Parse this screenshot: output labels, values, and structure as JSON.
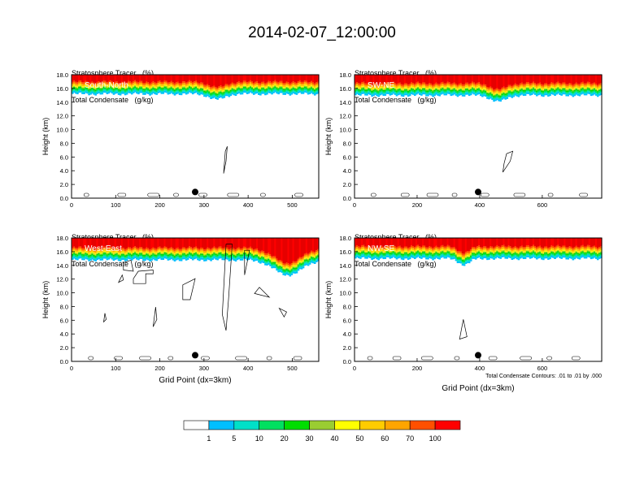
{
  "title": "2014-02-07_12:00:00",
  "panel_header": {
    "line1": "Stratosphere Tracer   (%)",
    "line2": "Total Condensate   (g/kg)"
  },
  "footnote": "Total Condensate Contours: .01 to .01 by .000",
  "colors": {
    "levels": [
      "#ffffff",
      "#1e90ff",
      "#00bfff",
      "#00e0c8",
      "#00e060",
      "#00dd00",
      "#9acd32",
      "#ffff00",
      "#ffcc00",
      "#ffa500",
      "#ff5000",
      "#ff0000"
    ]
  },
  "chart_data": [
    {
      "type": "heatmap",
      "panel": "South-North",
      "xlabel": "",
      "ylabel": "Height (km)",
      "xlim": [
        0,
        560
      ],
      "ylim": [
        0,
        18
      ],
      "xticks": [
        "0",
        "100",
        "200",
        "300",
        "400",
        "500"
      ],
      "yticks": [
        "0.0",
        "2.0",
        "4.0",
        "6.0",
        "8.0",
        "10.0",
        "12.0",
        "14.0",
        "16.0",
        "18.0"
      ],
      "marker_x": 280,
      "marker_y": 0.9,
      "tracer_base_km": 15.2,
      "dip": {
        "center": 330,
        "width": 25,
        "depth_km": 0.8
      }
    },
    {
      "type": "heatmap",
      "panel": "SW-NE",
      "xlabel": "",
      "ylabel": "Height (km)",
      "xlim": [
        0,
        790
      ],
      "ylim": [
        0,
        18
      ],
      "xticks": [
        "0",
        "200",
        "400",
        "600"
      ],
      "yticks": [
        "0.0",
        "2.0",
        "4.0",
        "6.0",
        "8.0",
        "10.0",
        "12.0",
        "14.0",
        "16.0",
        "18.0"
      ],
      "marker_x": 395,
      "marker_y": 0.9,
      "tracer_base_km": 15.0,
      "dip": {
        "center": 460,
        "width": 35,
        "depth_km": 0.9
      }
    },
    {
      "type": "heatmap",
      "panel": "West-East",
      "xlabel": "Grid Point (dx=3km)",
      "ylabel": "Height (km)",
      "xlim": [
        0,
        560
      ],
      "ylim": [
        0,
        18
      ],
      "xticks": [
        "0",
        "100",
        "200",
        "300",
        "400",
        "500"
      ],
      "yticks": [
        "0.0",
        "2.0",
        "4.0",
        "6.0",
        "8.0",
        "10.0",
        "12.0",
        "14.0",
        "16.0",
        "18.0"
      ],
      "marker_x": 280,
      "marker_y": 0.9,
      "tracer_base_km": 14.8,
      "dip": {
        "center": 490,
        "width": 45,
        "depth_km": 2.2
      }
    },
    {
      "type": "heatmap",
      "panel": "NW-SE",
      "xlabel": "Grid Point (dx=3km)",
      "ylabel": "Height (km)",
      "xlim": [
        0,
        790
      ],
      "ylim": [
        0,
        18
      ],
      "xticks": [
        "0",
        "200",
        "400",
        "600"
      ],
      "yticks": [
        "0.0",
        "2.0",
        "4.0",
        "6.0",
        "8.0",
        "10.0",
        "12.0",
        "14.0",
        "16.0",
        "18.0"
      ],
      "marker_x": 395,
      "marker_y": 0.9,
      "tracer_base_km": 15.0,
      "dip": {
        "center": 350,
        "width": 25,
        "depth_km": 0.9
      }
    }
  ],
  "colorbar": {
    "labels": [
      "1",
      "5",
      "10",
      "20",
      "30",
      "40",
      "50",
      "60",
      "70",
      "100"
    ]
  }
}
